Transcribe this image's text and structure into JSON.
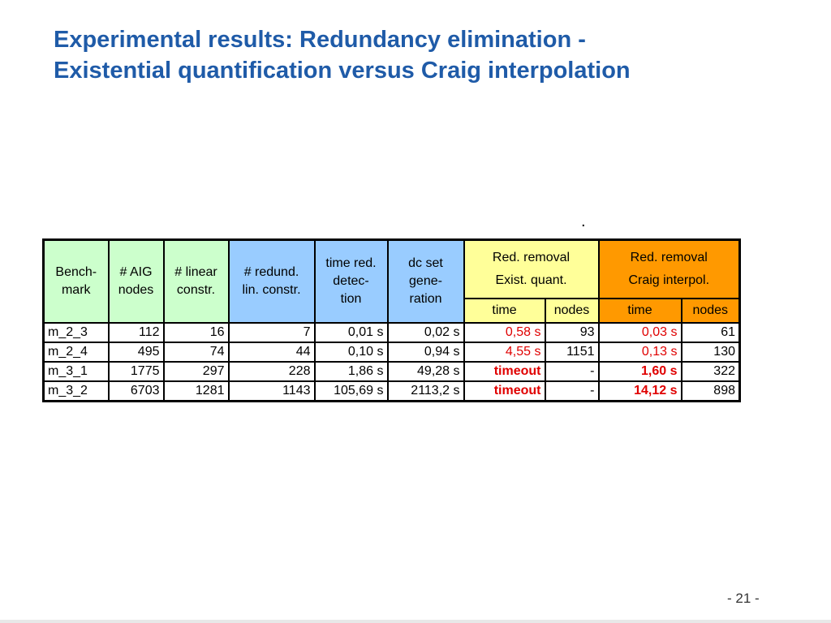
{
  "slide": {
    "title_line1": "Experimental results: Redundancy elimination -",
    "title_line2": "Existential quantification versus Craig interpolation",
    "dot": ".",
    "page_number": "-  21 -"
  },
  "table": {
    "headers": {
      "benchmark": "Bench-\nmark",
      "aig_nodes": "# AIG\nnodes",
      "linear_constr": "# linear\nconstr.",
      "redund_lin_constr": "# redund.\nlin. constr.",
      "time_red_detection": "time red.\ndetec-\ntion",
      "dc_set_generation": "dc set\ngene-\nration",
      "exist_group": "Red. removal\nExist. quant.",
      "craig_group": "Red. removal\nCraig interpol.",
      "time": "time",
      "nodes": "nodes"
    },
    "rows": [
      {
        "bench": "m_2_3",
        "aig": "112",
        "lin": "16",
        "red": "7",
        "tdet": "0,01 s",
        "dc": "0,02 s",
        "ex_time": "0,58 s",
        "ex_nodes": "93",
        "cr_time": "0,03 s",
        "cr_nodes": "61"
      },
      {
        "bench": "m_2_4",
        "aig": "495",
        "lin": "74",
        "red": "44",
        "tdet": "0,10 s",
        "dc": "0,94 s",
        "ex_time": "4,55 s",
        "ex_nodes": "1151",
        "cr_time": "0,13 s",
        "cr_nodes": "130"
      },
      {
        "bench": "m_3_1",
        "aig": "1775",
        "lin": "297",
        "red": "228",
        "tdet": "1,86 s",
        "dc": "49,28 s",
        "ex_time": "timeout",
        "ex_nodes": "-",
        "cr_time": "1,60 s",
        "cr_nodes": "322"
      },
      {
        "bench": "m_3_2",
        "aig": "6703",
        "lin": "1281",
        "red": "1143",
        "tdet": "105,69 s",
        "dc": "2113,2 s",
        "ex_time": "timeout",
        "ex_nodes": "-",
        "cr_time": "14,12 s",
        "cr_nodes": "898"
      }
    ]
  },
  "colors": {
    "title": "#1f5ba8",
    "green_header": "#ccffcc",
    "blue_header": "#99ccff",
    "yellow_header": "#ffff99",
    "orange_header": "#ff9900",
    "highlight_red": "#e00000"
  }
}
